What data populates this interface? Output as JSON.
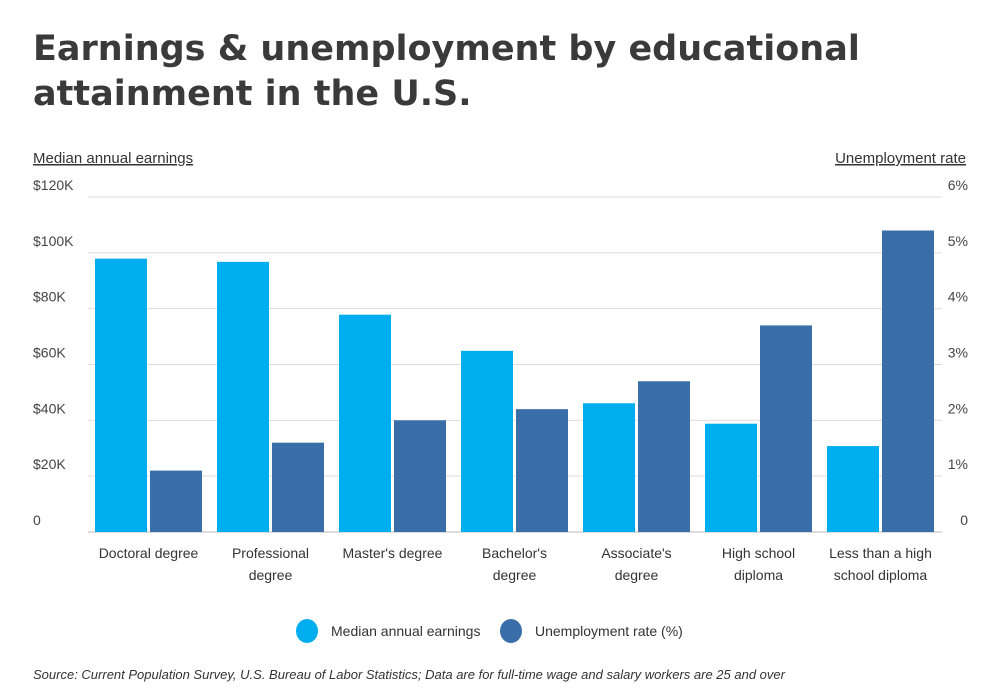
{
  "chart_data": {
    "type": "bar",
    "title": "Earnings & unemployment by educational attainment in the U.S.",
    "title_lines": [
      "Earnings & unemployment by educational",
      "attainment in the U.S."
    ],
    "ylabel_left": "Median annual earnings",
    "ylabel_right": "Unemployment rate",
    "ylim_left": [
      0,
      120000
    ],
    "ylim_right": [
      0,
      6
    ],
    "yticks_left": [
      "0",
      "$20K",
      "$40K",
      "$60K",
      "$80K",
      "$100K",
      "$120K"
    ],
    "yticks_right": [
      "0",
      "1%",
      "2%",
      "3%",
      "4%",
      "5%",
      "6%"
    ],
    "grid": true,
    "legend_placement": "bottom",
    "categories": [
      [
        "Doctoral degree"
      ],
      [
        "Professional",
        "degree"
      ],
      [
        "Master's degree"
      ],
      [
        "Bachelor's",
        "degree"
      ],
      [
        "Associate's",
        "degree"
      ],
      [
        "High school",
        "diploma"
      ],
      [
        "Less than a high",
        "school diploma"
      ]
    ],
    "series": [
      {
        "name": "Median annual earnings",
        "axis": "left",
        "color": "#00aeef",
        "values": [
          97916,
          96772,
          77844,
          64896,
          46124,
          38792,
          30784
        ]
      },
      {
        "name": "Unemployment rate (%)",
        "axis": "right",
        "color": "#3a6ea8",
        "values": [
          1.1,
          1.6,
          2.0,
          2.2,
          2.7,
          3.7,
          5.4
        ]
      }
    ],
    "source": "Source: Current Population Survey, U.S. Bureau of Labor Statistics;  Data are for full-time wage and salary workers are 25 and over"
  }
}
